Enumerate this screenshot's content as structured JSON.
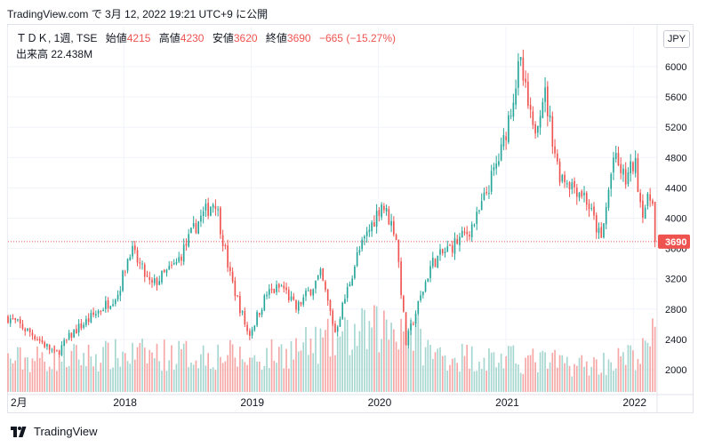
{
  "header": {
    "caption": "TradingView.com で 3月 12, 2022 19:21 UTC+9 に公開"
  },
  "legend": {
    "symbol": "ＴＤＫ, 1週, TSE",
    "open_label": "始値",
    "open_value": "4215",
    "high_label": "高値",
    "high_value": "4230",
    "low_label": "安値",
    "low_value": "3620",
    "close_label": "終値",
    "close_value": "3690",
    "change": "−665 (−15.27%)",
    "volume_label": "出来高",
    "volume_value": "22.438M"
  },
  "currency_button": "JPY",
  "footer": {
    "brand": "TradingView"
  },
  "colors": {
    "up": "#26a69a",
    "down": "#ef5350",
    "up_volume": "#a5d6d0",
    "down_volume": "#f5a6a5",
    "grid": "#f0f3fa",
    "price_line": "#ef5350"
  },
  "chart_data": {
    "type": "candlestick",
    "interval": "1 week",
    "y_axis_ticks": [
      2000,
      2400,
      2800,
      3200,
      3600,
      4000,
      4400,
      4800,
      5200,
      5600,
      6000
    ],
    "y_tick_labels": [
      "2000",
      "2400",
      "2800",
      "3200",
      "3600",
      "4000",
      "4400",
      "4800",
      "5200",
      "5600",
      "6000"
    ],
    "ylim": [
      1750,
      6200
    ],
    "x_tick_labels": [
      "2月",
      "2018",
      "2019",
      "2020",
      "2021",
      "2022"
    ],
    "x_range": [
      "2017-02",
      "2022-03"
    ],
    "last_price": 3690,
    "last_price_label": "3690",
    "volume_scale_max": 30,
    "price_anchors": [
      [
        "2017-02-01",
        2700
      ],
      [
        "2017-04-20",
        2450
      ],
      [
        "2017-06-20",
        2200
      ],
      [
        "2017-08-10",
        2500
      ],
      [
        "2017-09-20",
        2650
      ],
      [
        "2017-12-15",
        3000
      ],
      [
        "2018-01-20",
        3600
      ],
      [
        "2018-03-20",
        3100
      ],
      [
        "2018-06-01",
        3400
      ],
      [
        "2018-08-01",
        3950
      ],
      [
        "2018-09-20",
        4250
      ],
      [
        "2018-11-01",
        3250
      ],
      [
        "2018-12-25",
        2450
      ],
      [
        "2019-02-15",
        3000
      ],
      [
        "2019-04-01",
        3100
      ],
      [
        "2019-05-10",
        2800
      ],
      [
        "2019-07-20",
        3250
      ],
      [
        "2019-08-30",
        2500
      ],
      [
        "2019-11-01",
        3500
      ],
      [
        "2020-01-10",
        4200
      ],
      [
        "2020-02-20",
        3800
      ],
      [
        "2020-03-20",
        2350
      ],
      [
        "2020-06-01",
        3400
      ],
      [
        "2020-09-10",
        3800
      ],
      [
        "2020-10-10",
        4000
      ],
      [
        "2020-12-20",
        4900
      ],
      [
        "2021-02-10",
        6050
      ],
      [
        "2021-03-20",
        5100
      ],
      [
        "2021-04-20",
        5700
      ],
      [
        "2021-06-01",
        4600
      ],
      [
        "2021-08-15",
        4300
      ],
      [
        "2021-10-01",
        3700
      ],
      [
        "2021-11-05",
        4800
      ],
      [
        "2021-12-10",
        4500
      ],
      [
        "2022-01-05",
        4750
      ],
      [
        "2022-01-25",
        4100
      ],
      [
        "2022-02-25",
        4300
      ],
      [
        "2022-03-08",
        3690
      ]
    ],
    "volume_profile": [
      [
        "2017-02-01",
        12
      ],
      [
        "2018-02-01",
        14
      ],
      [
        "2018-10-20",
        14
      ],
      [
        "2019-01-01",
        12
      ],
      [
        "2020-03-20",
        26
      ],
      [
        "2020-06-01",
        14
      ],
      [
        "2021-02-10",
        12
      ],
      [
        "2021-09-01",
        10
      ],
      [
        "2022-01-25",
        14
      ],
      [
        "2022-03-08",
        22
      ]
    ]
  }
}
